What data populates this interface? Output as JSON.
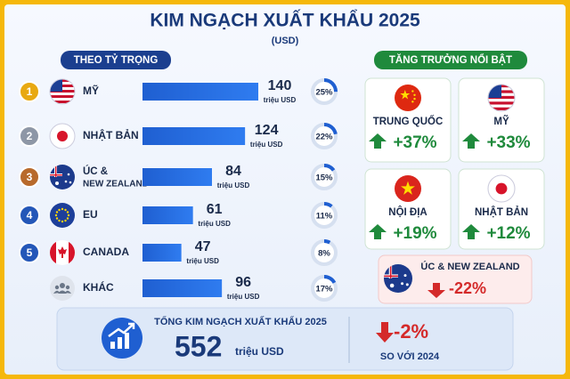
{
  "header": {
    "title": "KIM NGẠCH XUẤT KHẨU 2025",
    "subtitle": "(USD)"
  },
  "share_section": {
    "label": "THEO TỶ TRỌNG",
    "rows": [
      {
        "rank": "1",
        "name": "MỸ",
        "value": 140,
        "unit": "triệu USD",
        "share": 25,
        "share_label": "25%"
      },
      {
        "rank": "2",
        "name": "NHẬT BẢN",
        "value": 124,
        "unit": "triệu USD",
        "share": 22,
        "share_label": "22%"
      },
      {
        "rank": "3",
        "name": "ÚC &",
        "name_line2": "NEW ZEALAND",
        "value": 84,
        "unit": "triệu USD",
        "share": 15,
        "share_label": "15%"
      },
      {
        "rank": "4",
        "name": "EU",
        "value": 61,
        "unit": "triệu USD",
        "share": 11,
        "share_label": "11%"
      },
      {
        "rank": "5",
        "name": "CANADA",
        "value": 47,
        "unit": "triệu USD",
        "share": 8,
        "share_label": "8%"
      },
      {
        "rank": null,
        "name": "KHÁC",
        "value": 96,
        "unit": "triệu USD",
        "share": 17,
        "share_label": "17%"
      }
    ]
  },
  "growth_section": {
    "label": "TĂNG TRƯỞNG NỔI BẬT",
    "cards": [
      {
        "name": "TRUNG QUỐC",
        "growth": "+37%",
        "direction": "up"
      },
      {
        "name": "MỸ",
        "growth": "+33%",
        "direction": "up"
      },
      {
        "name": "NỘI ĐỊA",
        "growth": "+19%",
        "direction": "up"
      },
      {
        "name": "NHẬT BẢN",
        "growth": "+12%",
        "direction": "up"
      },
      {
        "name": "ÚC & NEW ZEALAND",
        "growth": "-22%",
        "direction": "down"
      }
    ]
  },
  "total": {
    "label": "TỔNG KIM NGẠCH XUẤT KHẨU 2025",
    "value": "552",
    "unit": "triệu USD",
    "change": "-2%",
    "comparison": "SO VỚI 2024",
    "direction": "down"
  }
}
